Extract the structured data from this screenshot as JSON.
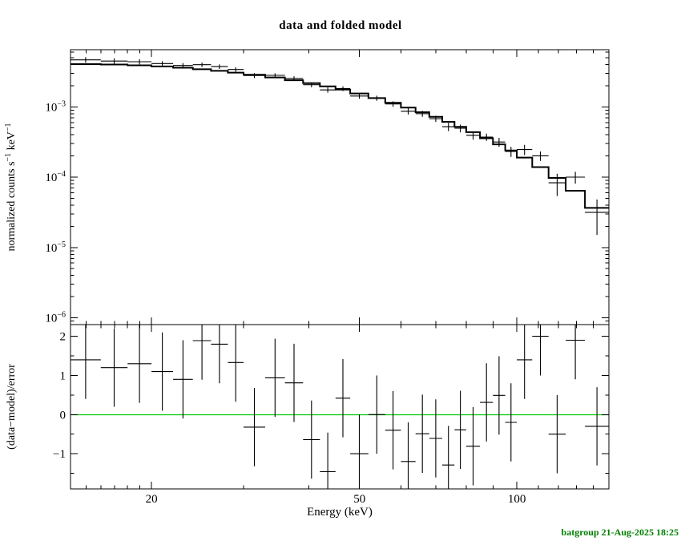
{
  "timestamp": {
    "text": "batgroup 21-Aug-2025 18:25",
    "color": "#008000"
  },
  "colors": {
    "foreground": "#000000",
    "background": "#ffffff",
    "zero_line": "#00c800",
    "timestamp": "#008000"
  },
  "chart_data": [
    {
      "id": "spectrum",
      "type": "line",
      "style": "stepped-histogram-model-with-data-error-bars",
      "title": "data and folded model",
      "ylabel": "normalized counts s⁻¹ keV⁻¹",
      "ylabel_parts": [
        {
          "text": "normalized counts s"
        },
        {
          "text": "−1",
          "sup": true
        },
        {
          "text": " keV"
        },
        {
          "text": "−1",
          "sup": true
        }
      ],
      "xscale": "log",
      "yscale": "log",
      "xlim": [
        14,
        150
      ],
      "ylim": [
        8e-07,
        0.0065
      ],
      "xticks": [
        20,
        50,
        100
      ],
      "xticks_minor": [
        15,
        16,
        17,
        18,
        19,
        30,
        40,
        60,
        70,
        80,
        90,
        110,
        120,
        130,
        140
      ],
      "yticks": [
        {
          "value": 0.001,
          "exponent": -3,
          "label": "10⁻³"
        },
        {
          "value": 0.0001,
          "exponent": -4,
          "label": "10⁻⁴"
        },
        {
          "value": 1e-05,
          "exponent": -5,
          "label": "10⁻⁵"
        },
        {
          "value": 1e-06,
          "exponent": -6,
          "label": "10⁻⁶"
        }
      ],
      "series": [
        {
          "name": "data",
          "bins": {
            "e_lo": [
              14,
              16,
              18,
              20,
              22,
              24,
              26,
              28,
              30,
              33,
              36,
              39,
              42,
              45,
              48,
              52,
              56,
              60,
              64,
              68,
              72,
              76,
              80,
              85,
              90,
              95,
              100,
              107,
              115,
              124,
              135
            ],
            "e_hi": [
              16,
              18,
              20,
              22,
              24,
              26,
              28,
              30,
              33,
              36,
              39,
              42,
              45,
              48,
              52,
              56,
              60,
              64,
              68,
              72,
              76,
              80,
              85,
              90,
              95,
              100,
              107,
              115,
              124,
              135,
              150
            ],
            "rate": [
              0.004652,
              0.00448,
              0.004381,
              0.004123,
              0.003879,
              0.003978,
              0.003736,
              0.003403,
              0.00279,
              0.002808,
              0.002536,
              0.002064,
              0.001741,
              0.001819,
              0.001425,
              0.00133,
              0.0011,
              0.000867,
              0.0008,
              0.000679,
              0.000522,
              0.000496,
              0.000394,
              0.000372,
              0.000316,
              0.000232,
              0.000247,
              0.000201,
              8.3e-05,
              0.0001,
              3.16e-05
            ],
            "error": [
              0.00043,
              0.0004,
              0.00037,
              0.00033,
              0.00031,
              0.00029,
              0.00027,
              0.00025,
              0.00022,
              0.0002,
              0.00018,
              0.000165,
              0.00015,
              0.00014,
              0.000125,
              0.00011,
              0.0001,
              9e-05,
              7.8e-05,
              6.8e-05,
              7e-05,
              6.2e-05,
              5.2e-05,
              4.4e-05,
              4.6e-05,
              3.8e-05,
              4.1e-05,
              3.1e-05,
              2.9e-05,
              1.9e-05,
              1.65e-05
            ]
          }
        },
        {
          "name": "folded model",
          "values": [
            0.00405,
            0.004,
            0.0039,
            0.00376,
            0.0036,
            0.00343,
            0.00325,
            0.00307,
            0.00286,
            0.00262,
            0.00239,
            0.00217,
            0.00196,
            0.00176,
            0.00155,
            0.00133,
            0.00114,
            0.000975,
            0.000838,
            0.00072,
            0.000612,
            0.00052,
            0.000436,
            0.000358,
            0.000293,
            0.00024,
            0.00019,
            0.000139,
            9.75e-05,
            6.4e-05,
            3.65e-05
          ]
        }
      ]
    },
    {
      "id": "residuals",
      "type": "scatter",
      "style": "residual-crosses-unit-error",
      "xlabel": "Energy (keV)",
      "ylabel": "(data−model)/error",
      "xscale": "log",
      "xlim": [
        14,
        150
      ],
      "ylim": [
        -1.9,
        2.3
      ],
      "yticks": [
        2,
        1,
        0,
        -1
      ],
      "yticks_minor": [
        1.5,
        0.5,
        -0.5,
        -1.5
      ],
      "values": [
        1.4,
        1.2,
        1.3,
        1.1,
        0.9,
        1.89,
        1.8,
        1.33,
        -0.32,
        0.94,
        0.81,
        -0.64,
        -1.46,
        0.42,
        -1.0,
        0.0,
        -0.4,
        -1.2,
        -0.49,
        -0.61,
        -1.29,
        -0.39,
        -0.81,
        0.31,
        0.49,
        -0.2,
        1.4,
        2.0,
        -0.5,
        1.9,
        -0.3
      ],
      "error": 1,
      "zero_line": 0
    }
  ]
}
